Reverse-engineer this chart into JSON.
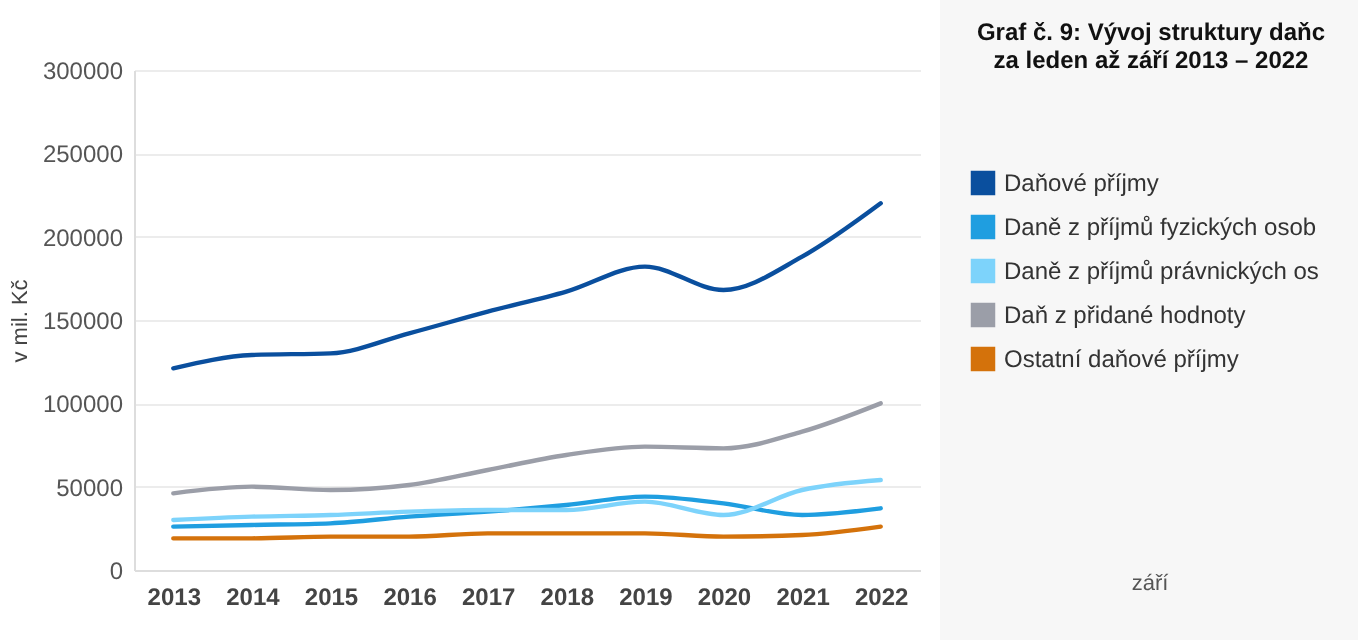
{
  "chart_data": {
    "type": "line",
    "title": "Graf č. 9: Vývoj struktury daňc za leden až září 2013 – 2022",
    "ylabel": "v mil. Kč",
    "annotations": [
      "září"
    ],
    "categories": [
      "2013",
      "2014",
      "2015",
      "2016",
      "2017",
      "2018",
      "2019",
      "2020",
      "2021",
      "2022"
    ],
    "ylim": [
      0,
      300000
    ],
    "yticks": [
      0,
      50000,
      100000,
      150000,
      200000,
      250000,
      300000
    ],
    "grid": "y",
    "legend": "right",
    "marker": "none",
    "line_style": "solid",
    "series": [
      {
        "name": "Daňové příjmy",
        "color": "#0a4f9e",
        "values": [
          121000,
          129000,
          130000,
          142000,
          155000,
          167000,
          182000,
          168000,
          188000,
          220000
        ]
      },
      {
        "name": "Daně z příjmů fyzických osob",
        "color": "#1f9ee0",
        "values": [
          26000,
          27000,
          28000,
          32000,
          35000,
          39000,
          44000,
          40000,
          33000,
          37000
        ]
      },
      {
        "name": "Daně z příjmů právnických os",
        "color": "#7dd3fb",
        "values": [
          30000,
          32000,
          33000,
          35000,
          36000,
          36000,
          41000,
          33000,
          48000,
          54000
        ]
      },
      {
        "name": "Daň z přidané hodnoty",
        "color": "#9b9ea8",
        "values": [
          46000,
          50000,
          48000,
          51000,
          60000,
          69000,
          74000,
          73000,
          83000,
          100000
        ]
      },
      {
        "name": "Ostatní daňové příjmy",
        "color": "#d4720b",
        "values": [
          19000,
          19000,
          20000,
          20000,
          22000,
          22000,
          22000,
          20000,
          21000,
          26000
        ]
      }
    ]
  }
}
